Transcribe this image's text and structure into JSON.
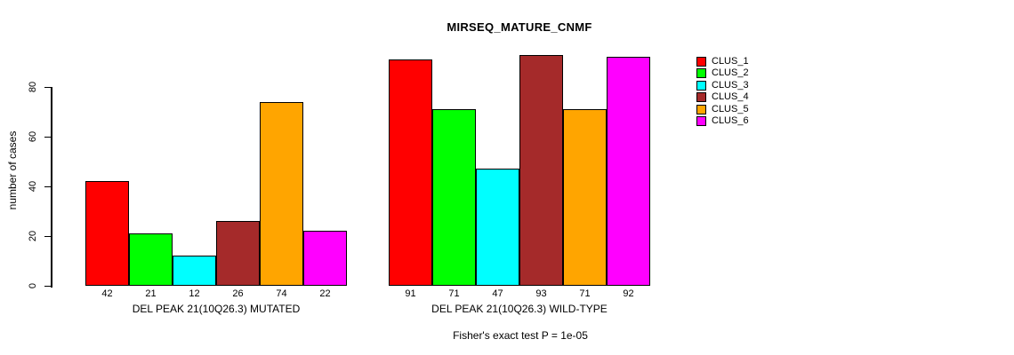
{
  "chart": {
    "title": "MIRSEQ_MATURE_CNMF",
    "ylabel": "number of cases",
    "annotation": "Fisher's exact test P = 1e-05"
  },
  "chart_data": {
    "type": "bar",
    "title": "MIRSEQ_MATURE_CNMF",
    "xlabel": "",
    "ylabel": "number of cases",
    "yticks": [
      0,
      20,
      40,
      60,
      80
    ],
    "ylim": [
      0,
      94
    ],
    "grid": false,
    "legend_position": "right",
    "legend": [
      "CLUS_1",
      "CLUS_2",
      "CLUS_3",
      "CLUS_4",
      "CLUS_5",
      "CLUS_6"
    ],
    "colors": [
      "#FF0000",
      "#00FF00",
      "#00FFFF",
      "#A52A2A",
      "#FFA500",
      "#FF00FF"
    ],
    "groups": [
      {
        "label": "DEL PEAK 21(10Q26.3) MUTATED",
        "values": [
          42,
          21,
          12,
          26,
          74,
          22
        ]
      },
      {
        "label": "DEL PEAK 21(10Q26.3) WILD-TYPE",
        "values": [
          91,
          71,
          47,
          93,
          71,
          92
        ]
      }
    ],
    "annotation": "Fisher's exact test P = 1e-05"
  }
}
